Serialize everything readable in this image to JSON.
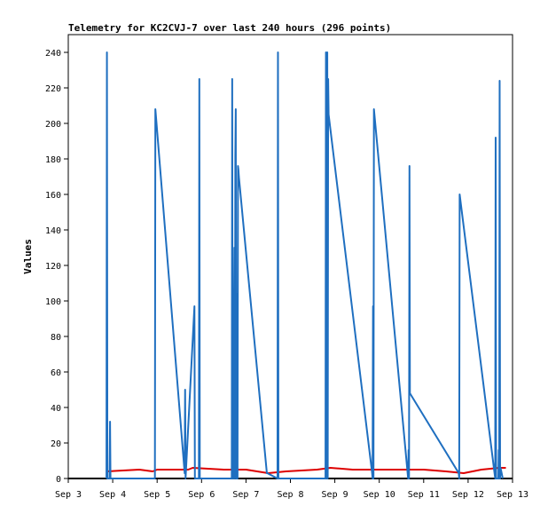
{
  "chart_data": {
    "type": "line",
    "title": "Telemetry for KC2CVJ-7 over last 240 hours (296 points)",
    "xlabel": "",
    "ylabel": "Values",
    "x_unit": "days (Sep)",
    "xlim": [
      3,
      13
    ],
    "ylim": [
      0,
      250
    ],
    "x_tick_labels": [
      "Sep 3",
      "Sep 4",
      "Sep 5",
      "Sep 6",
      "Sep 7",
      "Sep 8",
      "Sep 9",
      "Sep 10",
      "Sep 11",
      "Sep 12",
      "Sep 13"
    ],
    "x_tick_values": [
      3,
      4,
      5,
      6,
      7,
      8,
      9,
      10,
      11,
      12,
      13
    ],
    "y_ticks": [
      0,
      20,
      40,
      60,
      80,
      100,
      120,
      140,
      160,
      180,
      200,
      220,
      240
    ],
    "grid": false,
    "legend": "none",
    "colors": {
      "series1": "#1f6fc0",
      "series2": "#dd0000",
      "series3": "#000000"
    },
    "series": [
      {
        "x": [
          3.86,
          3.87,
          3.88,
          3.93,
          3.94,
          3.95,
          4.95,
          4.96,
          4.97,
          5.62,
          5.63,
          5.64,
          5.84,
          5.85,
          5.86,
          5.94,
          5.95,
          5.96,
          6.68,
          6.69,
          6.7,
          6.71,
          6.72,
          6.73,
          6.74,
          6.75,
          6.76,
          6.77,
          6.78,
          6.79,
          6.8,
          6.81,
          6.82,
          6.83,
          6.84,
          7.47,
          7.48,
          7.71,
          7.72,
          7.73,
          8.79,
          8.8,
          8.81,
          8.82,
          8.83,
          8.84,
          8.85,
          8.86,
          9.84,
          9.85,
          9.86,
          9.87,
          9.88,
          10.65,
          10.66,
          10.67,
          10.68,
          10.69,
          11.79,
          11.8,
          11.81,
          12.61,
          12.62,
          12.63,
          12.68,
          12.69,
          12.7,
          12.71,
          12.72,
          12.73,
          12.78
        ],
        "y": [
          0,
          240,
          0,
          0,
          32,
          0,
          0,
          208,
          205,
          3,
          50,
          0,
          97,
          0,
          0,
          0,
          225,
          0,
          0,
          225,
          0,
          26,
          0,
          78,
          130,
          0,
          182,
          208,
          0,
          104,
          0,
          0,
          176,
          174,
          170,
          3,
          3,
          0,
          240,
          0,
          0,
          240,
          0,
          230,
          240,
          0,
          225,
          205,
          3,
          0,
          97,
          0,
          208,
          0,
          16,
          0,
          176,
          48,
          3,
          0,
          160,
          0,
          192,
          0,
          0,
          16,
          0,
          224,
          0,
          6,
          0
        ]
      },
      {
        "x": [
          3.86,
          4.6,
          4.9,
          5.0,
          5.5,
          5.7,
          5.8,
          6.5,
          7.0,
          7.5,
          7.9,
          8.6,
          8.9,
          9.4,
          9.9,
          10.4,
          11.0,
          11.5,
          11.9,
          12.3,
          12.7,
          12.85
        ],
        "y": [
          4,
          5,
          4,
          5,
          5,
          5,
          6,
          5,
          5,
          3,
          4,
          5,
          6,
          5,
          5,
          5,
          5,
          4,
          3,
          5,
          6,
          6
        ]
      },
      {
        "x": [
          3,
          13
        ],
        "y": [
          0,
          0
        ]
      }
    ]
  }
}
